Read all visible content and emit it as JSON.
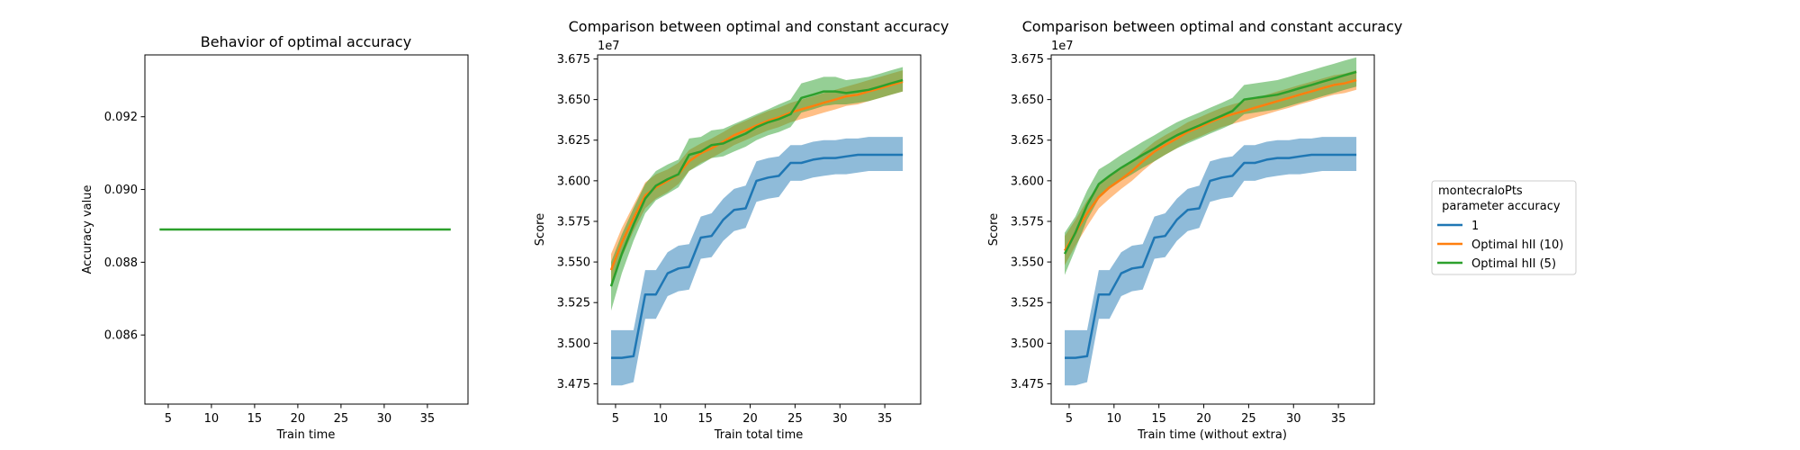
{
  "colors": {
    "series_1": "#1f77b4",
    "series_optimal_10": "#ff7f0e",
    "series_optimal_5": "#2ca02c"
  },
  "legend": {
    "title_line1": "montecraloPts",
    "title_line2": " parameter accuracy",
    "entries": [
      "1",
      "Optimal hII (10)",
      "Optimal hII (5)"
    ]
  },
  "chart_data": [
    {
      "type": "line",
      "title": "Behavior of optimal accuracy",
      "xlabel": "Train time",
      "ylabel": "Accuracy value",
      "xlim": [
        2.3,
        39.7
      ],
      "ylim": [
        0.0841,
        0.0937
      ],
      "x_ticks": [
        5,
        10,
        15,
        20,
        25,
        30,
        35
      ],
      "y_ticks": [
        0.086,
        0.088,
        0.09,
        0.092
      ],
      "y_tick_labels": [
        "0.086",
        "0.088",
        "0.090",
        "0.092"
      ],
      "grid": false,
      "series": [
        {
          "color_key": "series_optimal_5",
          "x": [
            4,
            37.7
          ],
          "y": [
            0.0889,
            0.0889
          ]
        }
      ]
    },
    {
      "type": "line",
      "title": "Comparison between optimal and constant accuracy",
      "xlabel": "Train total time",
      "ylabel": "Score",
      "offset_text": "1e7",
      "xlim": [
        3.0,
        39.0
      ],
      "ylim": [
        3.4625,
        3.6775
      ],
      "x_ticks": [
        5,
        10,
        15,
        20,
        25,
        30,
        35
      ],
      "y_ticks": [
        3.475,
        3.5,
        3.525,
        3.55,
        3.575,
        3.6,
        3.625,
        3.65,
        3.675
      ],
      "y_tick_labels": [
        "3.475",
        "3.500",
        "3.525",
        "3.550",
        "3.575",
        "3.600",
        "3.625",
        "3.650",
        "3.675"
      ],
      "grid": false,
      "legend": "none",
      "x": [
        4.5,
        5.7,
        7.0,
        8.3,
        9.5,
        10.8,
        12.0,
        13.2,
        14.5,
        15.7,
        17.0,
        18.2,
        19.5,
        20.7,
        22.0,
        23.2,
        24.5,
        25.7,
        27.0,
        28.2,
        29.5,
        30.7,
        32.0,
        33.2,
        34.5,
        35.7,
        37.0
      ],
      "series": [
        {
          "name": "1",
          "color_key": "series_1",
          "mean": [
            3.491,
            3.491,
            3.492,
            3.53,
            3.53,
            3.543,
            3.546,
            3.547,
            3.565,
            3.566,
            3.576,
            3.582,
            3.583,
            3.6,
            3.602,
            3.603,
            3.611,
            3.611,
            3.613,
            3.614,
            3.614,
            3.615,
            3.616,
            3.616,
            3.616,
            3.616,
            3.616
          ],
          "lower": [
            3.474,
            3.474,
            3.476,
            3.515,
            3.515,
            3.529,
            3.532,
            3.533,
            3.552,
            3.553,
            3.563,
            3.569,
            3.571,
            3.587,
            3.589,
            3.59,
            3.6,
            3.6,
            3.602,
            3.603,
            3.604,
            3.604,
            3.605,
            3.606,
            3.606,
            3.606,
            3.606
          ],
          "upper": [
            3.508,
            3.508,
            3.508,
            3.545,
            3.545,
            3.556,
            3.56,
            3.561,
            3.578,
            3.58,
            3.589,
            3.595,
            3.597,
            3.612,
            3.614,
            3.615,
            3.622,
            3.622,
            3.624,
            3.625,
            3.625,
            3.626,
            3.626,
            3.627,
            3.627,
            3.627,
            3.627
          ]
        },
        {
          "name": "Optimal hII (10)",
          "color_key": "series_optimal_10",
          "mean": [
            3.545,
            3.562,
            3.577,
            3.591,
            3.596,
            3.6,
            3.604,
            3.612,
            3.617,
            3.62,
            3.624,
            3.628,
            3.631,
            3.634,
            3.637,
            3.639,
            3.642,
            3.644,
            3.646,
            3.648,
            3.65,
            3.652,
            3.653,
            3.655,
            3.657,
            3.659,
            3.661
          ],
          "lower": [
            3.535,
            3.553,
            3.569,
            3.583,
            3.589,
            3.593,
            3.598,
            3.606,
            3.611,
            3.614,
            3.618,
            3.622,
            3.625,
            3.628,
            3.631,
            3.633,
            3.636,
            3.638,
            3.64,
            3.642,
            3.644,
            3.646,
            3.647,
            3.649,
            3.651,
            3.653,
            3.655
          ],
          "upper": [
            3.555,
            3.571,
            3.585,
            3.599,
            3.604,
            3.607,
            3.611,
            3.619,
            3.623,
            3.626,
            3.63,
            3.634,
            3.637,
            3.64,
            3.643,
            3.645,
            3.648,
            3.65,
            3.652,
            3.654,
            3.656,
            3.658,
            3.66,
            3.662,
            3.664,
            3.666,
            3.668
          ]
        },
        {
          "name": "Optimal hII (5)",
          "color_key": "series_optimal_5",
          "mean": [
            3.535,
            3.555,
            3.573,
            3.589,
            3.597,
            3.601,
            3.604,
            3.616,
            3.618,
            3.622,
            3.623,
            3.626,
            3.629,
            3.633,
            3.636,
            3.638,
            3.641,
            3.651,
            3.653,
            3.655,
            3.655,
            3.654,
            3.655,
            3.656,
            3.658,
            3.66,
            3.662
          ],
          "lower": [
            3.52,
            3.543,
            3.563,
            3.58,
            3.588,
            3.592,
            3.596,
            3.606,
            3.61,
            3.614,
            3.615,
            3.618,
            3.621,
            3.625,
            3.628,
            3.63,
            3.633,
            3.642,
            3.644,
            3.646,
            3.647,
            3.647,
            3.648,
            3.649,
            3.651,
            3.653,
            3.655
          ],
          "upper": [
            3.55,
            3.567,
            3.583,
            3.598,
            3.606,
            3.61,
            3.613,
            3.626,
            3.627,
            3.631,
            3.632,
            3.635,
            3.638,
            3.641,
            3.644,
            3.647,
            3.65,
            3.66,
            3.662,
            3.664,
            3.664,
            3.662,
            3.663,
            3.664,
            3.666,
            3.668,
            3.67
          ]
        }
      ]
    },
    {
      "type": "line",
      "title": "Comparison between optimal and constant accuracy",
      "xlabel": "Train time (without extra)",
      "ylabel": "Score",
      "offset_text": "1e7",
      "xlim": [
        3.0,
        39.0
      ],
      "ylim": [
        3.4625,
        3.6775
      ],
      "x_ticks": [
        5,
        10,
        15,
        20,
        25,
        30,
        35
      ],
      "y_ticks": [
        3.475,
        3.5,
        3.525,
        3.55,
        3.575,
        3.6,
        3.625,
        3.65,
        3.675
      ],
      "y_tick_labels": [
        "3.475",
        "3.500",
        "3.525",
        "3.550",
        "3.575",
        "3.600",
        "3.625",
        "3.650",
        "3.675"
      ],
      "grid": false,
      "legend": "outside-right",
      "x": [
        4.5,
        5.7,
        7.0,
        8.3,
        9.5,
        10.8,
        12.0,
        13.2,
        14.5,
        15.7,
        17.0,
        18.2,
        19.5,
        20.7,
        22.0,
        23.2,
        24.5,
        25.7,
        27.0,
        28.2,
        29.5,
        30.7,
        32.0,
        33.2,
        34.5,
        35.7,
        37.0
      ],
      "series": [
        {
          "name": "1",
          "color_key": "series_1",
          "mean": [
            3.491,
            3.491,
            3.492,
            3.53,
            3.53,
            3.543,
            3.546,
            3.547,
            3.565,
            3.566,
            3.576,
            3.582,
            3.583,
            3.6,
            3.602,
            3.603,
            3.611,
            3.611,
            3.613,
            3.614,
            3.614,
            3.615,
            3.616,
            3.616,
            3.616,
            3.616,
            3.616
          ],
          "lower": [
            3.474,
            3.474,
            3.476,
            3.515,
            3.515,
            3.529,
            3.532,
            3.533,
            3.552,
            3.553,
            3.563,
            3.569,
            3.571,
            3.587,
            3.589,
            3.59,
            3.6,
            3.6,
            3.602,
            3.603,
            3.604,
            3.604,
            3.605,
            3.606,
            3.606,
            3.606,
            3.606
          ],
          "upper": [
            3.508,
            3.508,
            3.508,
            3.545,
            3.545,
            3.556,
            3.56,
            3.561,
            3.578,
            3.58,
            3.589,
            3.595,
            3.597,
            3.612,
            3.614,
            3.615,
            3.622,
            3.622,
            3.624,
            3.625,
            3.625,
            3.626,
            3.626,
            3.627,
            3.627,
            3.627,
            3.627
          ]
        },
        {
          "name": "Optimal hII (10)",
          "color_key": "series_optimal_10",
          "mean": [
            3.557,
            3.568,
            3.58,
            3.59,
            3.596,
            3.601,
            3.606,
            3.612,
            3.618,
            3.622,
            3.626,
            3.63,
            3.633,
            3.636,
            3.639,
            3.641,
            3.643,
            3.645,
            3.647,
            3.649,
            3.651,
            3.653,
            3.655,
            3.657,
            3.659,
            3.66,
            3.662
          ],
          "lower": [
            3.548,
            3.56,
            3.572,
            3.583,
            3.589,
            3.595,
            3.6,
            3.606,
            3.612,
            3.616,
            3.62,
            3.624,
            3.627,
            3.63,
            3.633,
            3.635,
            3.637,
            3.639,
            3.641,
            3.643,
            3.645,
            3.647,
            3.649,
            3.651,
            3.653,
            3.654,
            3.656
          ],
          "upper": [
            3.566,
            3.576,
            3.588,
            3.597,
            3.603,
            3.607,
            3.612,
            3.618,
            3.624,
            3.628,
            3.632,
            3.636,
            3.639,
            3.642,
            3.645,
            3.647,
            3.649,
            3.651,
            3.653,
            3.655,
            3.657,
            3.659,
            3.661,
            3.663,
            3.665,
            3.666,
            3.668
          ]
        },
        {
          "name": "Optimal hII (5)",
          "color_key": "series_optimal_5",
          "mean": [
            3.555,
            3.568,
            3.585,
            3.598,
            3.603,
            3.608,
            3.612,
            3.616,
            3.62,
            3.624,
            3.628,
            3.631,
            3.634,
            3.637,
            3.64,
            3.643,
            3.65,
            3.651,
            3.652,
            3.653,
            3.655,
            3.657,
            3.659,
            3.661,
            3.663,
            3.665,
            3.667
          ],
          "lower": [
            3.542,
            3.558,
            3.576,
            3.589,
            3.595,
            3.6,
            3.604,
            3.608,
            3.612,
            3.616,
            3.62,
            3.623,
            3.626,
            3.629,
            3.632,
            3.635,
            3.641,
            3.642,
            3.643,
            3.644,
            3.646,
            3.648,
            3.65,
            3.652,
            3.654,
            3.656,
            3.658
          ],
          "upper": [
            3.568,
            3.578,
            3.594,
            3.607,
            3.611,
            3.616,
            3.62,
            3.624,
            3.628,
            3.632,
            3.636,
            3.639,
            3.642,
            3.645,
            3.648,
            3.651,
            3.659,
            3.66,
            3.661,
            3.662,
            3.664,
            3.666,
            3.668,
            3.67,
            3.672,
            3.674,
            3.676
          ]
        }
      ]
    }
  ]
}
